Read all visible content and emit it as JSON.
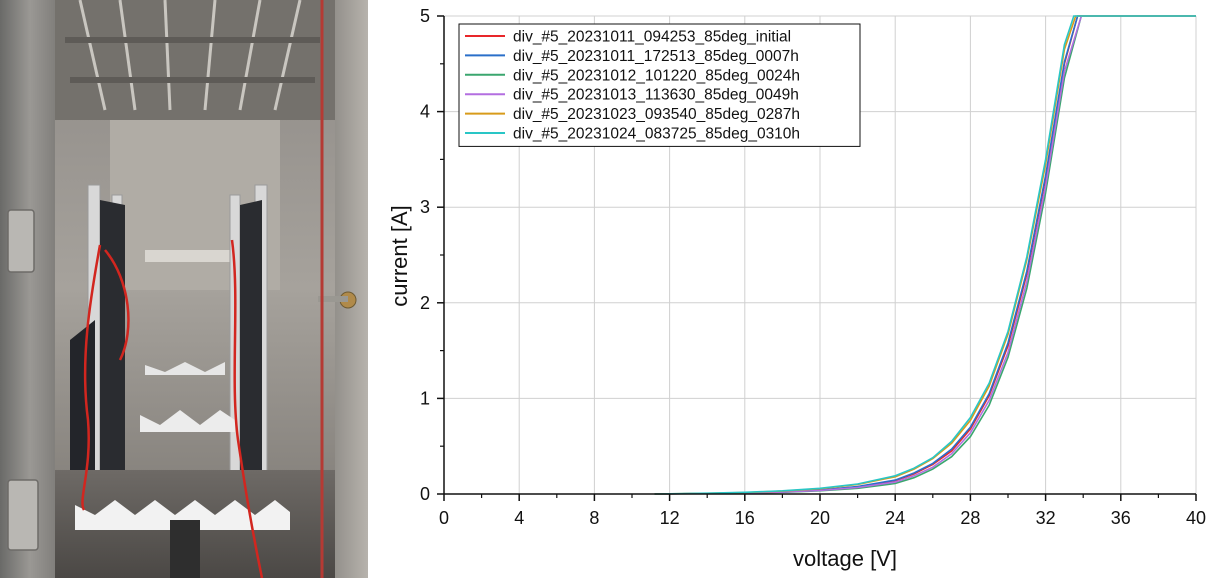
{
  "chart_data": {
    "type": "line",
    "title": "",
    "xlabel": "voltage [V]",
    "ylabel": "current [A]",
    "xlim": [
      0,
      40
    ],
    "ylim": [
      0,
      5
    ],
    "x_ticks": [
      0,
      4,
      8,
      12,
      16,
      20,
      24,
      28,
      32,
      36,
      40
    ],
    "y_ticks": [
      0,
      1,
      2,
      3,
      4,
      5
    ],
    "grid": true,
    "legend_position": "top-left",
    "series": [
      {
        "name": "div_#5_20231011_094253_85deg_initial",
        "color": "#e8262a",
        "x": [
          11.2,
          14,
          16,
          18,
          20,
          22,
          24,
          25,
          26,
          27,
          28,
          29,
          30,
          31,
          32,
          33,
          33.7,
          34,
          36,
          38,
          40
        ],
        "y": [
          0.0,
          0.005,
          0.012,
          0.022,
          0.04,
          0.075,
          0.14,
          0.21,
          0.31,
          0.45,
          0.68,
          1.03,
          1.55,
          2.3,
          3.3,
          4.5,
          5.0,
          5.0,
          5.0,
          5.0,
          5.0
        ]
      },
      {
        "name": "div_#5_20231011_172513_85deg_0007h",
        "color": "#2a6fc9",
        "x": [
          11.2,
          14,
          16,
          18,
          20,
          22,
          24,
          25,
          26,
          27,
          28,
          29,
          30,
          31,
          32,
          33,
          33.7,
          34,
          36,
          38,
          40
        ],
        "y": [
          0.0,
          0.005,
          0.012,
          0.022,
          0.042,
          0.078,
          0.145,
          0.22,
          0.32,
          0.47,
          0.7,
          1.05,
          1.58,
          2.33,
          3.33,
          4.52,
          5.0,
          5.0,
          5.0,
          5.0,
          5.0
        ]
      },
      {
        "name": "div_#5_20231012_101220_85deg_0024h",
        "color": "#3aa66f",
        "x": [
          11.2,
          14,
          16,
          18,
          20,
          22,
          24,
          25,
          26,
          27,
          28,
          29,
          30,
          31,
          32,
          33,
          33.9,
          34,
          36,
          38,
          40
        ],
        "y": [
          0.0,
          0.004,
          0.01,
          0.018,
          0.033,
          0.06,
          0.11,
          0.17,
          0.26,
          0.39,
          0.6,
          0.93,
          1.43,
          2.15,
          3.15,
          4.35,
          5.0,
          5.0,
          5.0,
          5.0,
          5.0
        ]
      },
      {
        "name": "div_#5_20231013_113630_85deg_0049h",
        "color": "#b36ee0",
        "x": [
          11.2,
          14,
          16,
          18,
          20,
          22,
          24,
          25,
          26,
          27,
          28,
          29,
          30,
          31,
          32,
          33,
          33.9,
          34,
          36,
          38,
          40
        ],
        "y": [
          0.0,
          0.005,
          0.011,
          0.02,
          0.037,
          0.068,
          0.125,
          0.19,
          0.28,
          0.42,
          0.64,
          0.98,
          1.48,
          2.22,
          3.22,
          4.42,
          5.0,
          5.0,
          5.0,
          5.0,
          5.0
        ]
      },
      {
        "name": "div_#5_20231023_093540_85deg_0287h",
        "color": "#d89b1a",
        "x": [
          11.2,
          14,
          16,
          18,
          20,
          22,
          24,
          25,
          26,
          27,
          28,
          29,
          30,
          31,
          32,
          33,
          33.6,
          34,
          36,
          38,
          40
        ],
        "y": [
          0.0,
          0.007,
          0.016,
          0.03,
          0.055,
          0.1,
          0.18,
          0.26,
          0.37,
          0.53,
          0.77,
          1.13,
          1.67,
          2.45,
          3.45,
          4.65,
          5.0,
          5.0,
          5.0,
          5.0,
          5.0
        ]
      },
      {
        "name": "div_#5_20231024_083725_85deg_0310h",
        "color": "#29c6c6",
        "x": [
          11.2,
          14,
          16,
          18,
          20,
          22,
          24,
          25,
          26,
          27,
          28,
          29,
          30,
          31,
          32,
          33,
          33.5,
          34,
          36,
          38,
          40
        ],
        "y": [
          0.0,
          0.008,
          0.018,
          0.033,
          0.06,
          0.105,
          0.19,
          0.27,
          0.38,
          0.55,
          0.8,
          1.16,
          1.7,
          2.48,
          3.5,
          4.7,
          5.0,
          5.0,
          5.0,
          5.0,
          5.0
        ]
      }
    ]
  }
}
